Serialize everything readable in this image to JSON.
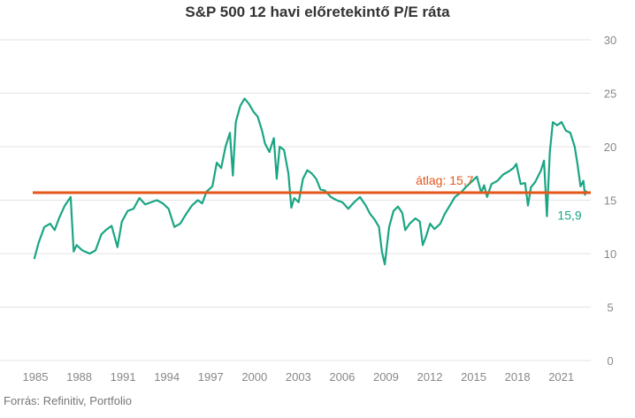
{
  "chart_data": {
    "type": "line",
    "title": "S&P 500 12 havi előretekintő P/E ráta",
    "source": "Forrás: Refinitiv, Portfolio",
    "xlim": [
      1985,
      2023.2
    ],
    "ylim": [
      0,
      30
    ],
    "x_ticks": [
      "1985",
      "1988",
      "1991",
      "1994",
      "1997",
      "2000",
      "2003",
      "2006",
      "2009",
      "2012",
      "2015",
      "2018",
      "2021"
    ],
    "y_ticks": [
      "0",
      "5",
      "10",
      "15",
      "20",
      "25",
      "30"
    ],
    "grid": true,
    "colors": {
      "series": "#1aa583",
      "average": "#e4571c",
      "grid": "#e3e3e3"
    },
    "series": [
      {
        "points": [
          [
            1985.1,
            9.5
          ],
          [
            1985.4,
            11.0
          ],
          [
            1985.8,
            12.5
          ],
          [
            1986.2,
            12.8
          ],
          [
            1986.5,
            12.2
          ],
          [
            1986.8,
            13.3
          ],
          [
            1987.2,
            14.5
          ],
          [
            1987.6,
            15.3
          ],
          [
            1987.8,
            10.2
          ],
          [
            1988.0,
            10.8
          ],
          [
            1988.4,
            10.3
          ],
          [
            1988.9,
            10.0
          ],
          [
            1989.3,
            10.3
          ],
          [
            1989.7,
            11.8
          ],
          [
            1990.0,
            12.2
          ],
          [
            1990.4,
            12.6
          ],
          [
            1990.8,
            10.6
          ],
          [
            1991.1,
            13.0
          ],
          [
            1991.5,
            14.0
          ],
          [
            1991.9,
            14.2
          ],
          [
            1992.3,
            15.2
          ],
          [
            1992.7,
            14.6
          ],
          [
            1993.1,
            14.8
          ],
          [
            1993.5,
            15.0
          ],
          [
            1993.9,
            14.7
          ],
          [
            1994.3,
            14.2
          ],
          [
            1994.7,
            12.5
          ],
          [
            1995.1,
            12.8
          ],
          [
            1995.5,
            13.7
          ],
          [
            1995.9,
            14.5
          ],
          [
            1996.3,
            15.0
          ],
          [
            1996.6,
            14.7
          ],
          [
            1996.9,
            15.8
          ],
          [
            1997.3,
            16.3
          ],
          [
            1997.6,
            18.5
          ],
          [
            1997.9,
            18.0
          ],
          [
            1998.2,
            20.0
          ],
          [
            1998.5,
            21.3
          ],
          [
            1998.7,
            17.3
          ],
          [
            1998.9,
            22.3
          ],
          [
            1999.2,
            23.8
          ],
          [
            1999.5,
            24.5
          ],
          [
            1999.8,
            24.0
          ],
          [
            2000.1,
            23.3
          ],
          [
            2000.4,
            22.8
          ],
          [
            2000.7,
            21.5
          ],
          [
            2000.9,
            20.3
          ],
          [
            2001.2,
            19.5
          ],
          [
            2001.5,
            20.8
          ],
          [
            2001.7,
            17.0
          ],
          [
            2001.9,
            20.0
          ],
          [
            2002.2,
            19.7
          ],
          [
            2002.5,
            17.5
          ],
          [
            2002.7,
            14.3
          ],
          [
            2002.9,
            15.2
          ],
          [
            2003.2,
            14.8
          ],
          [
            2003.5,
            17.0
          ],
          [
            2003.8,
            17.8
          ],
          [
            2004.1,
            17.5
          ],
          [
            2004.4,
            17.0
          ],
          [
            2004.7,
            16.0
          ],
          [
            2005.0,
            15.9
          ],
          [
            2005.4,
            15.3
          ],
          [
            2005.8,
            15.0
          ],
          [
            2006.2,
            14.8
          ],
          [
            2006.6,
            14.2
          ],
          [
            2007.0,
            14.8
          ],
          [
            2007.4,
            15.3
          ],
          [
            2007.8,
            14.5
          ],
          [
            2008.1,
            13.7
          ],
          [
            2008.4,
            13.2
          ],
          [
            2008.7,
            12.5
          ],
          [
            2008.9,
            10.2
          ],
          [
            2009.1,
            9.0
          ],
          [
            2009.4,
            12.5
          ],
          [
            2009.7,
            14.0
          ],
          [
            2010.0,
            14.4
          ],
          [
            2010.3,
            13.8
          ],
          [
            2010.5,
            12.2
          ],
          [
            2010.8,
            12.8
          ],
          [
            2011.2,
            13.3
          ],
          [
            2011.5,
            13.0
          ],
          [
            2011.7,
            10.8
          ],
          [
            2011.9,
            11.5
          ],
          [
            2012.2,
            12.8
          ],
          [
            2012.5,
            12.3
          ],
          [
            2012.9,
            12.8
          ],
          [
            2013.2,
            13.7
          ],
          [
            2013.6,
            14.6
          ],
          [
            2013.9,
            15.3
          ],
          [
            2014.3,
            15.7
          ],
          [
            2014.7,
            16.3
          ],
          [
            2015.1,
            16.8
          ],
          [
            2015.4,
            17.2
          ],
          [
            2015.7,
            15.7
          ],
          [
            2015.9,
            16.4
          ],
          [
            2016.1,
            15.3
          ],
          [
            2016.4,
            16.5
          ],
          [
            2016.8,
            16.8
          ],
          [
            2017.2,
            17.4
          ],
          [
            2017.6,
            17.7
          ],
          [
            2017.9,
            18.0
          ],
          [
            2018.1,
            18.4
          ],
          [
            2018.4,
            16.5
          ],
          [
            2018.7,
            16.6
          ],
          [
            2018.9,
            14.5
          ],
          [
            2019.1,
            16.2
          ],
          [
            2019.4,
            16.7
          ],
          [
            2019.8,
            17.8
          ],
          [
            2020.0,
            18.7
          ],
          [
            2020.2,
            13.5
          ],
          [
            2020.4,
            19.5
          ],
          [
            2020.6,
            22.3
          ],
          [
            2020.9,
            22.0
          ],
          [
            2021.2,
            22.3
          ],
          [
            2021.5,
            21.5
          ],
          [
            2021.8,
            21.3
          ],
          [
            2022.1,
            20.0
          ],
          [
            2022.3,
            18.3
          ],
          [
            2022.5,
            16.3
          ],
          [
            2022.7,
            16.8
          ],
          [
            2022.8,
            15.5
          ],
          [
            2022.9,
            15.9
          ]
        ]
      }
    ],
    "average": {
      "value": 15.7,
      "label": "átlag: 15,7"
    },
    "last_value_label": "15,9"
  }
}
